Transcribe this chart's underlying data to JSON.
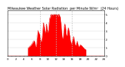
{
  "title": "Milwaukee Weather Solar Radiation  per Minute W/m²  (24 Hours)",
  "title_fontsize": 3.5,
  "bg_color": "#ffffff",
  "fill_color": "#ff0000",
  "line_color": "#dd0000",
  "grid_color": "#bbbbbb",
  "ytick_labels": [
    "5",
    "4",
    "3",
    "2",
    "1",
    "0"
  ],
  "ytick_values": [
    5,
    4,
    3,
    2,
    1,
    0
  ],
  "ylim": [
    0,
    5.5
  ],
  "num_points": 1440,
  "peak_value": 5.0,
  "x_tick_positions": [
    0,
    60,
    120,
    180,
    240,
    300,
    360,
    420,
    480,
    540,
    600,
    660,
    720,
    780,
    840,
    900,
    960,
    1020,
    1080,
    1140,
    1200,
    1260,
    1320,
    1380,
    1440
  ],
  "x_tick_labels": [
    "0",
    "",
    "2",
    "",
    "4",
    "",
    "6",
    "",
    "8",
    "",
    "10",
    "",
    "12",
    "",
    "14",
    "",
    "16",
    "",
    "18",
    "",
    "20",
    "",
    "22",
    "",
    "24"
  ],
  "vline_positions": [
    480,
    720,
    960
  ],
  "tick_fontsize": 3.0
}
